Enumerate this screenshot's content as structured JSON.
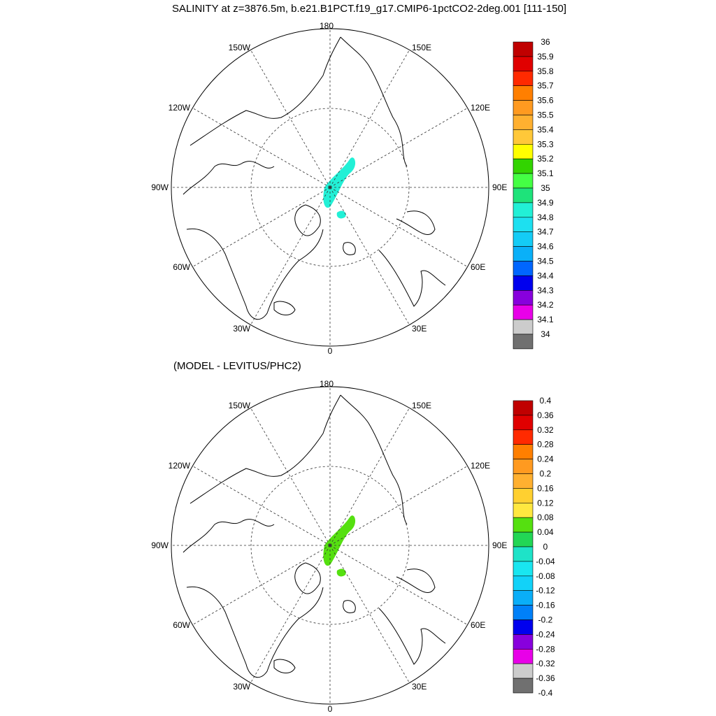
{
  "main_title": "SALINITY at z=3876.5m, b.e21.B1PCT.f19_g17.CMIP6-1pctCO2-2deg.001 [111-150]",
  "panels": [
    {
      "id": "salinity",
      "subtitle": "",
      "longitude_labels": [
        "180",
        "150E",
        "120E",
        "90E",
        "60E",
        "30E",
        "0",
        "30W",
        "60W",
        "90W",
        "120W",
        "150W"
      ],
      "fill_color": "#22f0d6",
      "colorbar": {
        "labels": [
          "36",
          "35.9",
          "35.8",
          "35.7",
          "35.6",
          "35.5",
          "35.4",
          "35.3",
          "35.2",
          "35.1",
          "35",
          "34.9",
          "34.8",
          "34.7",
          "34.6",
          "34.5",
          "34.4",
          "34.3",
          "34.2",
          "34.1",
          "34"
        ],
        "colors": [
          "#c00000",
          "#e00000",
          "#ff2a00",
          "#ff7f00",
          "#ff9a20",
          "#ffb030",
          "#ffc839",
          "#ffff00",
          "#32d400",
          "#44ff44",
          "#1ee37a",
          "#22f0d6",
          "#1de0f0",
          "#14ccf6",
          "#0ab0f8",
          "#0066ff",
          "#0000ee",
          "#8800dd",
          "#e800e8",
          "#cccccc",
          "#707070"
        ]
      }
    },
    {
      "id": "difference",
      "subtitle": "(MODEL - LEVITUS/PHC2)",
      "longitude_labels": [
        "180",
        "150E",
        "120E",
        "90E",
        "60E",
        "30E",
        "0",
        "30W",
        "60W",
        "90W",
        "120W",
        "150W"
      ],
      "fill_color": "#55e010",
      "colorbar": {
        "labels": [
          "0.4",
          "0.36",
          "0.32",
          "0.28",
          "0.24",
          "0.2",
          "0.16",
          "0.12",
          "0.08",
          "0.04",
          "0",
          "-0.04",
          "-0.08",
          "-0.12",
          "-0.16",
          "-0.2",
          "-0.24",
          "-0.28",
          "-0.32",
          "-0.36",
          "-0.4"
        ],
        "colors": [
          "#c00000",
          "#e00000",
          "#ff2a00",
          "#ff7f00",
          "#ff9a20",
          "#ffb030",
          "#ffd030",
          "#ffe840",
          "#55e010",
          "#22d655",
          "#1ee3c8",
          "#19e6f0",
          "#12d2f8",
          "#0aaef8",
          "#0080f8",
          "#0000ee",
          "#8800dd",
          "#e800e8",
          "#cccccc",
          "#707070"
        ]
      }
    }
  ]
}
